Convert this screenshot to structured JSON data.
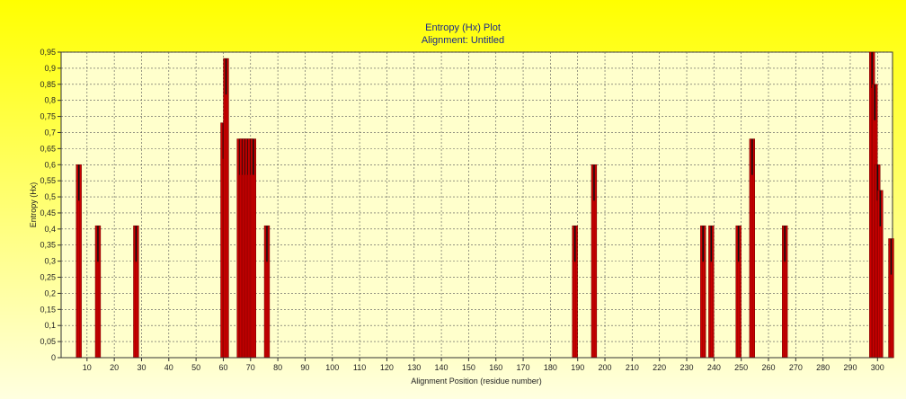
{
  "chart_data": {
    "type": "bar",
    "title": "Entropy (Hx) Plot",
    "subtitle": "Alignment: Untitled",
    "xlabel": "Alignment Position (residue number)",
    "ylabel": "Entropy (Hx)",
    "xlim": [
      1,
      305
    ],
    "ylim": [
      0,
      0.95
    ],
    "x_ticks": [
      10,
      20,
      30,
      40,
      50,
      60,
      70,
      80,
      90,
      100,
      110,
      120,
      130,
      140,
      150,
      160,
      170,
      180,
      190,
      200,
      210,
      220,
      230,
      240,
      250,
      260,
      270,
      280,
      290,
      300
    ],
    "y_ticks": [
      "0",
      "0,05",
      "0,1",
      "0,15",
      "0,2",
      "0,25",
      "0,3",
      "0,35",
      "0,4",
      "0,45",
      "0,5",
      "0,55",
      "0,6",
      "0,65",
      "0,7",
      "0,75",
      "0,8",
      "0,85",
      "0,9",
      "0,95"
    ],
    "y_tick_values": [
      0,
      0.05,
      0.1,
      0.15,
      0.2,
      0.25,
      0.3,
      0.35,
      0.4,
      0.45,
      0.5,
      0.55,
      0.6,
      0.65,
      0.7,
      0.75,
      0.8,
      0.85,
      0.9,
      0.95
    ],
    "grid": true,
    "bar_color": "#cc0000",
    "peak_color": "#111111",
    "background_top": "#ffff00",
    "background_bottom": "#ffffe0",
    "series": [
      {
        "positions": [
          7,
          14,
          28,
          60,
          61,
          66,
          67,
          68,
          69,
          70,
          71,
          76,
          189,
          196,
          236,
          239,
          249,
          254,
          266,
          298,
          299,
          300,
          301,
          305
        ],
        "values": [
          0.6,
          0.41,
          0.41,
          0.73,
          0.93,
          0.68,
          0.68,
          0.68,
          0.68,
          0.68,
          0.68,
          0.41,
          0.41,
          0.6,
          0.41,
          0.41,
          0.41,
          0.68,
          0.41,
          0.95,
          0.85,
          0.6,
          0.52,
          0.37
        ]
      }
    ]
  }
}
